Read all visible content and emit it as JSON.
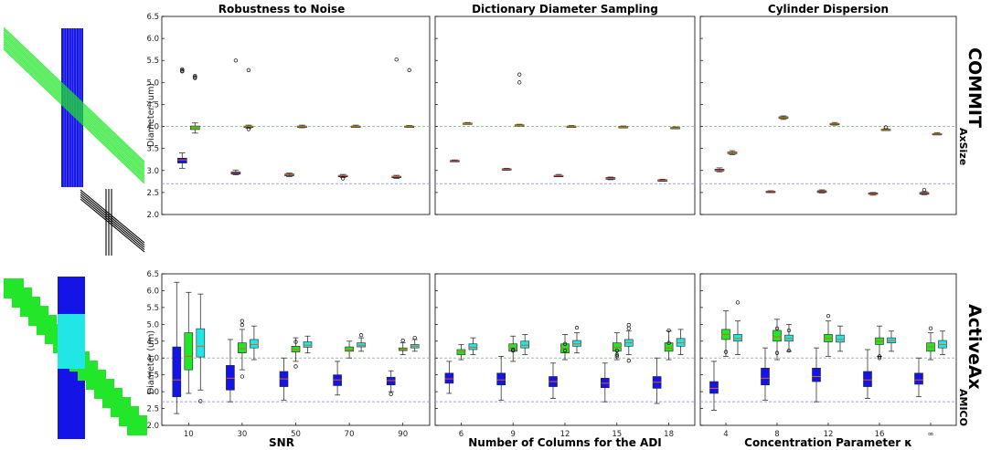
{
  "colors": {
    "blue": "#1414e6",
    "green": "#22e62a",
    "cyan": "#22e6e6",
    "ref_green": "#9dbf9d",
    "ref_blue": "#9d9df0"
  },
  "chart_data": {
    "type": "box",
    "ylim": [
      2.0,
      6.5
    ],
    "yticks": [
      "2.0",
      "2.5",
      "3.0",
      "3.5",
      "4.0",
      "4.5",
      "5.0",
      "5.5",
      "6.0",
      "6.5"
    ],
    "ylabel": "Diameter (um)",
    "reference_lines": [
      4.0,
      2.7
    ],
    "panel_titles": [
      "Robustness to Noise",
      "Dictionary Diameter Sampling",
      "Cylinder Dispersion"
    ],
    "xlabels": [
      "SNR",
      "Number of Columns for the ADI",
      "Concentration Parameter κ"
    ],
    "xticks": [
      [
        "10",
        "30",
        "50",
        "70",
        "90"
      ],
      [
        "6",
        "9",
        "12",
        "15",
        "18"
      ],
      [
        "4",
        "8",
        "12",
        "16",
        "∞"
      ]
    ],
    "rows": [
      {
        "label": "COMMIT",
        "subscript": "AxSize"
      },
      {
        "label": "ActiveAx",
        "subscript": "AMICO"
      }
    ],
    "panels": [
      {
        "row": 0,
        "col": 0,
        "boxes": [
          {
            "g": 0,
            "s": "blue",
            "q1": 3.17,
            "med": 3.24,
            "q3": 3.28,
            "lo": 3.05,
            "hi": 3.4,
            "fl": []
          },
          {
            "g": 0,
            "s": "green",
            "q1": 3.93,
            "med": 3.97,
            "q3": 4.01,
            "lo": 3.85,
            "hi": 4.08,
            "fl": []
          },
          {
            "g": 1,
            "s": "blue",
            "q1": 2.92,
            "med": 2.95,
            "q3": 2.97,
            "lo": 2.9,
            "hi": 3.01,
            "fl": []
          },
          {
            "g": 1,
            "s": "green",
            "q1": 3.99,
            "med": 4.0,
            "q3": 4.01,
            "lo": 3.96,
            "hi": 4.03,
            "fl": [
              3.94
            ]
          },
          {
            "g": 2,
            "s": "blue",
            "q1": 2.88,
            "med": 2.9,
            "q3": 2.92,
            "lo": 2.86,
            "hi": 2.94,
            "fl": []
          },
          {
            "g": 2,
            "s": "green",
            "q1": 3.99,
            "med": 4.0,
            "q3": 4.01,
            "lo": 3.97,
            "hi": 4.03,
            "fl": []
          },
          {
            "g": 3,
            "s": "blue",
            "q1": 2.86,
            "med": 2.88,
            "q3": 2.89,
            "lo": 2.84,
            "hi": 2.91,
            "fl": [
              2.82
            ]
          },
          {
            "g": 3,
            "s": "green",
            "q1": 3.99,
            "med": 4.0,
            "q3": 4.01,
            "lo": 3.98,
            "hi": 4.03,
            "fl": []
          },
          {
            "g": 4,
            "s": "blue",
            "q1": 2.84,
            "med": 2.86,
            "q3": 2.87,
            "lo": 2.82,
            "hi": 2.89,
            "fl": []
          },
          {
            "g": 4,
            "s": "green",
            "q1": 3.99,
            "med": 4.0,
            "q3": 4.01,
            "lo": 3.98,
            "hi": 4.02,
            "fl": []
          }
        ]
      },
      {
        "row": 0,
        "col": 1,
        "boxes": [
          {
            "g": 0,
            "s": "blue",
            "q1": 3.21,
            "med": 3.22,
            "q3": 3.23,
            "lo": 3.2,
            "hi": 3.24,
            "fl": []
          },
          {
            "g": 0,
            "s": "green",
            "q1": 4.06,
            "med": 4.07,
            "q3": 4.08,
            "lo": 4.05,
            "hi": 4.09,
            "fl": []
          },
          {
            "g": 1,
            "s": "blue",
            "q1": 3.02,
            "med": 3.03,
            "q3": 3.04,
            "lo": 3.01,
            "hi": 3.05,
            "fl": []
          },
          {
            "g": 1,
            "s": "green",
            "q1": 4.02,
            "med": 4.03,
            "q3": 4.04,
            "lo": 4.01,
            "hi": 4.05,
            "fl": [
              5.18,
              5.0
            ]
          },
          {
            "g": 2,
            "s": "blue",
            "q1": 2.87,
            "med": 2.88,
            "q3": 2.89,
            "lo": 2.86,
            "hi": 2.91,
            "fl": []
          },
          {
            "g": 2,
            "s": "green",
            "q1": 3.99,
            "med": 4.0,
            "q3": 4.01,
            "lo": 3.98,
            "hi": 4.02,
            "fl": []
          },
          {
            "g": 3,
            "s": "blue",
            "q1": 2.8,
            "med": 2.82,
            "q3": 2.84,
            "lo": 2.79,
            "hi": 2.85,
            "fl": []
          },
          {
            "g": 3,
            "s": "green",
            "q1": 3.98,
            "med": 3.99,
            "q3": 4.0,
            "lo": 3.97,
            "hi": 4.01,
            "fl": []
          },
          {
            "g": 4,
            "s": "blue",
            "q1": 2.77,
            "med": 2.78,
            "q3": 2.79,
            "lo": 2.76,
            "hi": 2.8,
            "fl": []
          },
          {
            "g": 4,
            "s": "green",
            "q1": 3.96,
            "med": 3.97,
            "q3": 3.98,
            "lo": 3.95,
            "hi": 3.99,
            "fl": []
          }
        ]
      },
      {
        "row": 0,
        "col": 2,
        "boxes": [
          {
            "g": 0,
            "s": "blue",
            "q1": 2.99,
            "med": 3.01,
            "q3": 3.03,
            "lo": 2.97,
            "hi": 3.06,
            "fl": []
          },
          {
            "g": 0,
            "s": "green",
            "q1": 3.38,
            "med": 3.4,
            "q3": 3.42,
            "lo": 3.36,
            "hi": 3.45,
            "fl": []
          },
          {
            "g": 1,
            "s": "blue",
            "q1": 2.51,
            "med": 2.52,
            "q3": 2.53,
            "lo": 2.5,
            "hi": 2.54,
            "fl": []
          },
          {
            "g": 1,
            "s": "green",
            "q1": 4.18,
            "med": 4.2,
            "q3": 4.22,
            "lo": 4.16,
            "hi": 4.24,
            "fl": []
          },
          {
            "g": 2,
            "s": "blue",
            "q1": 2.5,
            "med": 2.52,
            "q3": 2.54,
            "lo": 2.49,
            "hi": 2.56,
            "fl": []
          },
          {
            "g": 2,
            "s": "green",
            "q1": 4.05,
            "med": 4.06,
            "q3": 4.07,
            "lo": 4.03,
            "hi": 4.09,
            "fl": []
          },
          {
            "g": 3,
            "s": "blue",
            "q1": 2.46,
            "med": 2.47,
            "q3": 2.49,
            "lo": 2.44,
            "hi": 2.5,
            "fl": []
          },
          {
            "g": 3,
            "s": "green",
            "q1": 3.92,
            "med": 3.93,
            "q3": 3.94,
            "lo": 3.91,
            "hi": 3.95,
            "fl": [
              3.98
            ]
          },
          {
            "g": 4,
            "s": "blue",
            "q1": 2.46,
            "med": 2.48,
            "q3": 2.5,
            "lo": 2.45,
            "hi": 2.52,
            "fl": [
              2.56
            ]
          },
          {
            "g": 4,
            "s": "green",
            "q1": 3.82,
            "med": 3.83,
            "q3": 3.84,
            "lo": 3.81,
            "hi": 3.86,
            "fl": []
          }
        ]
      },
      {
        "row": 1,
        "col": 0,
        "boxes": [
          {
            "g": 0,
            "s": "blue",
            "q1": 2.85,
            "med": 3.35,
            "q3": 4.33,
            "lo": 2.35,
            "hi": 6.25,
            "fl": []
          },
          {
            "g": 0,
            "s": "green",
            "q1": 3.65,
            "med": 4.05,
            "q3": 4.75,
            "lo": 2.95,
            "hi": 5.95,
            "fl": []
          },
          {
            "g": 0,
            "s": "cyan",
            "q1": 4.03,
            "med": 4.35,
            "q3": 4.87,
            "lo": 3.05,
            "hi": 5.9,
            "fl": [
              2.72
            ]
          },
          {
            "g": 1,
            "s": "blue",
            "q1": 3.05,
            "med": 3.4,
            "q3": 3.78,
            "lo": 2.7,
            "hi": 4.55,
            "fl": []
          },
          {
            "g": 1,
            "s": "green",
            "q1": 4.15,
            "med": 4.28,
            "q3": 4.45,
            "lo": 3.65,
            "hi": 4.85,
            "fl": [
              3.45,
              4.98,
              5.1
            ]
          },
          {
            "g": 1,
            "s": "cyan",
            "q1": 4.3,
            "med": 4.4,
            "q3": 4.55,
            "lo": 3.95,
            "hi": 4.95,
            "fl": []
          },
          {
            "g": 2,
            "s": "blue",
            "q1": 3.15,
            "med": 3.38,
            "q3": 3.6,
            "lo": 2.75,
            "hi": 4.0,
            "fl": []
          },
          {
            "g": 2,
            "s": "green",
            "q1": 4.18,
            "med": 4.25,
            "q3": 4.35,
            "lo": 3.9,
            "hi": 4.6,
            "fl": [
              3.75,
              4.48
            ]
          },
          {
            "g": 2,
            "s": "cyan",
            "q1": 4.32,
            "med": 4.38,
            "q3": 4.48,
            "lo": 4.15,
            "hi": 4.65,
            "fl": []
          },
          {
            "g": 3,
            "s": "blue",
            "q1": 3.18,
            "med": 3.35,
            "q3": 3.5,
            "lo": 2.9,
            "hi": 3.9,
            "fl": []
          },
          {
            "g": 3,
            "s": "green",
            "q1": 4.2,
            "med": 4.25,
            "q3": 4.33,
            "lo": 4.0,
            "hi": 4.5,
            "fl": []
          },
          {
            "g": 3,
            "s": "cyan",
            "q1": 4.33,
            "med": 4.38,
            "q3": 4.45,
            "lo": 4.2,
            "hi": 4.6,
            "fl": [
              4.68
            ]
          },
          {
            "g": 4,
            "s": "blue",
            "q1": 3.2,
            "med": 3.33,
            "q3": 3.43,
            "lo": 3.0,
            "hi": 3.62,
            "fl": [
              2.93
            ]
          },
          {
            "g": 4,
            "s": "green",
            "q1": 4.22,
            "med": 4.25,
            "q3": 4.3,
            "lo": 4.1,
            "hi": 4.45,
            "fl": [
              4.52
            ]
          },
          {
            "g": 4,
            "s": "cyan",
            "q1": 4.3,
            "med": 4.35,
            "q3": 4.4,
            "lo": 4.2,
            "hi": 4.55,
            "fl": [
              4.6
            ]
          }
        ]
      },
      {
        "row": 1,
        "col": 1,
        "boxes": [
          {
            "g": 0,
            "s": "blue",
            "q1": 3.25,
            "med": 3.38,
            "q3": 3.55,
            "lo": 2.95,
            "hi": 3.9,
            "fl": []
          },
          {
            "g": 0,
            "s": "green",
            "q1": 4.1,
            "med": 4.18,
            "q3": 4.25,
            "lo": 3.95,
            "hi": 4.4,
            "fl": []
          },
          {
            "g": 0,
            "s": "cyan",
            "q1": 4.25,
            "med": 4.32,
            "q3": 4.42,
            "lo": 4.1,
            "hi": 4.6,
            "fl": []
          },
          {
            "g": 1,
            "s": "blue",
            "q1": 3.2,
            "med": 3.35,
            "q3": 3.55,
            "lo": 2.75,
            "hi": 4.05,
            "fl": []
          },
          {
            "g": 1,
            "s": "green",
            "q1": 4.2,
            "med": 4.3,
            "q3": 4.42,
            "lo": 3.9,
            "hi": 4.65,
            "fl": [
              4.25,
              4.22
            ]
          },
          {
            "g": 1,
            "s": "cyan",
            "q1": 4.3,
            "med": 4.38,
            "q3": 4.5,
            "lo": 4.1,
            "hi": 4.7,
            "fl": []
          },
          {
            "g": 2,
            "s": "blue",
            "q1": 3.15,
            "med": 3.3,
            "q3": 3.45,
            "lo": 2.8,
            "hi": 3.85,
            "fl": []
          },
          {
            "g": 2,
            "s": "green",
            "q1": 4.15,
            "med": 4.28,
            "q3": 4.42,
            "lo": 3.95,
            "hi": 4.7,
            "fl": [
              4.22,
              4.42
            ]
          },
          {
            "g": 2,
            "s": "cyan",
            "q1": 4.35,
            "med": 4.42,
            "q3": 4.52,
            "lo": 4.15,
            "hi": 4.75,
            "fl": [
              4.9
            ]
          },
          {
            "g": 3,
            "s": "blue",
            "q1": 3.12,
            "med": 3.25,
            "q3": 3.4,
            "lo": 2.7,
            "hi": 3.85,
            "fl": []
          },
          {
            "g": 3,
            "s": "green",
            "q1": 4.2,
            "med": 4.32,
            "q3": 4.45,
            "lo": 3.95,
            "hi": 4.75,
            "fl": [
              4.05,
              4.1,
              4.22
            ]
          },
          {
            "g": 3,
            "s": "cyan",
            "q1": 4.35,
            "med": 4.45,
            "q3": 4.55,
            "lo": 4.1,
            "hi": 4.8,
            "fl": [
              3.92,
              4.98,
              4.88
            ]
          },
          {
            "g": 4,
            "s": "blue",
            "q1": 3.1,
            "med": 3.28,
            "q3": 3.45,
            "lo": 2.65,
            "hi": 4.0,
            "fl": []
          },
          {
            "g": 4,
            "s": "green",
            "q1": 4.2,
            "med": 4.3,
            "q3": 4.45,
            "lo": 3.95,
            "hi": 4.8,
            "fl": [
              4.45,
              4.82
            ]
          },
          {
            "g": 4,
            "s": "cyan",
            "q1": 4.35,
            "med": 4.45,
            "q3": 4.58,
            "lo": 4.1,
            "hi": 4.85,
            "fl": []
          }
        ]
      },
      {
        "row": 1,
        "col": 2,
        "boxes": [
          {
            "g": 0,
            "s": "blue",
            "q1": 2.95,
            "med": 3.1,
            "q3": 3.3,
            "lo": 2.45,
            "hi": 3.9,
            "fl": []
          },
          {
            "g": 0,
            "s": "green",
            "q1": 4.55,
            "med": 4.7,
            "q3": 4.85,
            "lo": 4.05,
            "hi": 5.4,
            "fl": [
              4.18
            ]
          },
          {
            "g": 0,
            "s": "cyan",
            "q1": 4.5,
            "med": 4.58,
            "q3": 4.7,
            "lo": 4.1,
            "hi": 5.1,
            "fl": [
              5.65
            ]
          },
          {
            "g": 1,
            "s": "blue",
            "q1": 3.2,
            "med": 3.4,
            "q3": 3.7,
            "lo": 2.75,
            "hi": 4.3,
            "fl": []
          },
          {
            "g": 1,
            "s": "green",
            "q1": 4.5,
            "med": 4.63,
            "q3": 4.82,
            "lo": 3.95,
            "hi": 5.15,
            "fl": [
              4.15,
              4.88
            ]
          },
          {
            "g": 1,
            "s": "cyan",
            "q1": 4.5,
            "med": 4.58,
            "q3": 4.68,
            "lo": 4.2,
            "hi": 5.0,
            "fl": [
              4.22,
              4.82
            ]
          },
          {
            "g": 2,
            "s": "blue",
            "q1": 3.3,
            "med": 3.45,
            "q3": 3.7,
            "lo": 2.7,
            "hi": 4.3,
            "fl": []
          },
          {
            "g": 2,
            "s": "green",
            "q1": 4.48,
            "med": 4.58,
            "q3": 4.7,
            "lo": 4.05,
            "hi": 5.1,
            "fl": [
              5.25
            ]
          },
          {
            "g": 2,
            "s": "cyan",
            "q1": 4.47,
            "med": 4.55,
            "q3": 4.68,
            "lo": 4.2,
            "hi": 4.95,
            "fl": []
          },
          {
            "g": 3,
            "s": "blue",
            "q1": 3.15,
            "med": 3.35,
            "q3": 3.6,
            "lo": 2.8,
            "hi": 4.25,
            "fl": []
          },
          {
            "g": 3,
            "s": "green",
            "q1": 4.4,
            "med": 4.5,
            "q3": 4.6,
            "lo": 4.05,
            "hi": 4.95,
            "fl": [
              4.05,
              4.0
            ]
          },
          {
            "g": 3,
            "s": "cyan",
            "q1": 4.45,
            "med": 4.52,
            "q3": 4.6,
            "lo": 4.2,
            "hi": 4.8,
            "fl": []
          },
          {
            "g": 4,
            "s": "blue",
            "q1": 3.22,
            "med": 3.35,
            "q3": 3.55,
            "lo": 2.85,
            "hi": 4.0,
            "fl": []
          },
          {
            "g": 4,
            "s": "green",
            "q1": 4.2,
            "med": 4.33,
            "q3": 4.45,
            "lo": 3.95,
            "hi": 4.75,
            "fl": [
              4.88
            ]
          },
          {
            "g": 4,
            "s": "cyan",
            "q1": 4.3,
            "med": 4.4,
            "q3": 4.52,
            "lo": 4.1,
            "hi": 4.8,
            "fl": []
          }
        ]
      }
    ]
  }
}
